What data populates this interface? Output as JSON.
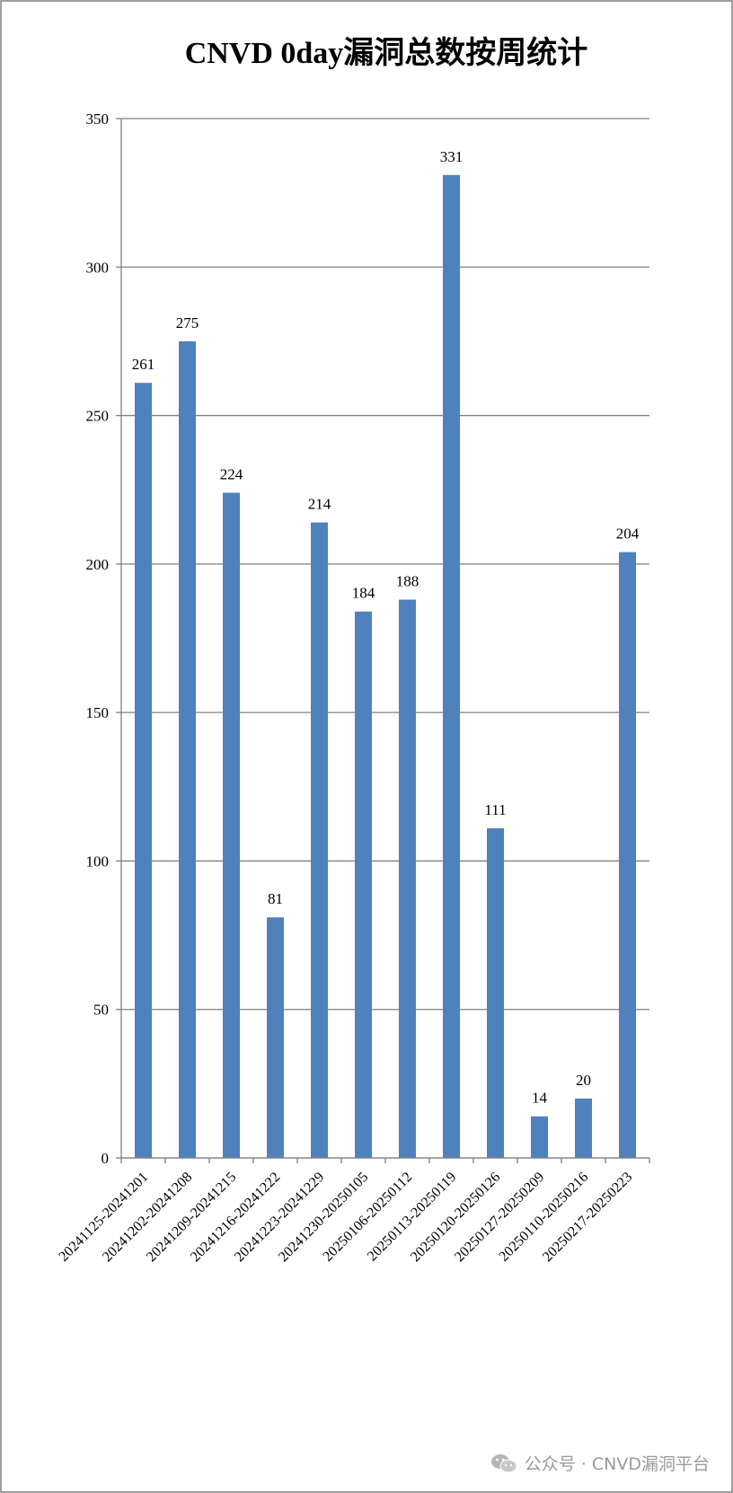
{
  "chart_data": {
    "type": "bar",
    "title": "CNVD 0day漏洞总数按周统计",
    "xlabel": "",
    "ylabel": "",
    "categories": [
      "20241125-20241201",
      "20241202-20241208",
      "20241209-20241215",
      "20241216-20241222",
      "20241223-20241229",
      "20241230-20250105",
      "20250106-20250112",
      "20250113-20250119",
      "20250120-20250126",
      "20250127-20250209",
      "20250110-20250216",
      "20250217-20250223"
    ],
    "values": [
      261,
      275,
      224,
      81,
      214,
      184,
      188,
      331,
      111,
      14,
      20,
      204
    ],
    "ylim": [
      0,
      350
    ],
    "yticks": [
      0,
      50,
      100,
      150,
      200,
      250,
      300,
      350
    ],
    "grid": true,
    "legend": "none",
    "data_labels": true,
    "colors": {
      "bar": "#4f81bd",
      "grid": "#808080",
      "axis": "#808080",
      "border": "#808080"
    }
  },
  "watermark": {
    "icon": "wechat-icon",
    "text": "公众号 · CNVD漏洞平台"
  }
}
